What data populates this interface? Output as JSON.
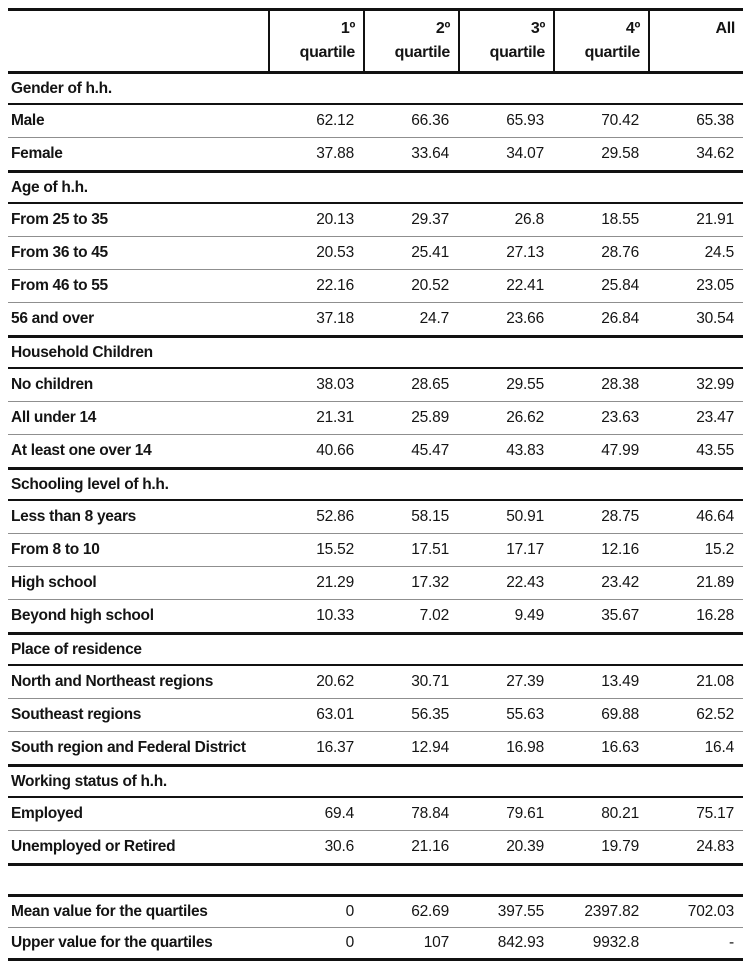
{
  "colors": {
    "background": "#ffffff",
    "text": "#141414",
    "border_strong": "#111111",
    "border_section_title": "#111111",
    "border_thin": "#8f8f8f"
  },
  "chart_data": {
    "type": "table",
    "columns": [
      {
        "line1": "1º",
        "line2": "quartile"
      },
      {
        "line1": "2º",
        "line2": "quartile"
      },
      {
        "line1": "3º",
        "line2": "quartile"
      },
      {
        "line1": "4º",
        "line2": "quartile"
      },
      {
        "line1": "All",
        "line2": ""
      }
    ],
    "sections": [
      {
        "title": "Gender of h.h.",
        "rows": [
          {
            "label": "Male",
            "values": [
              "62.12",
              "66.36",
              "65.93",
              "70.42",
              "65.38"
            ]
          },
          {
            "label": "Female",
            "values": [
              "37.88",
              "33.64",
              "34.07",
              "29.58",
              "34.62"
            ]
          }
        ]
      },
      {
        "title": "Age of h.h.",
        "rows": [
          {
            "label": "From 25 to 35",
            "values": [
              "20.13",
              "29.37",
              "26.8",
              "18.55",
              "21.91"
            ]
          },
          {
            "label": "From 36 to 45",
            "values": [
              "20.53",
              "25.41",
              "27.13",
              "28.76",
              "24.5"
            ]
          },
          {
            "label": "From 46 to 55",
            "values": [
              "22.16",
              "20.52",
              "22.41",
              "25.84",
              "23.05"
            ]
          },
          {
            "label": "56 and over",
            "values": [
              "37.18",
              "24.7",
              "23.66",
              "26.84",
              "30.54"
            ]
          }
        ]
      },
      {
        "title": "Household Children",
        "rows": [
          {
            "label": "No children",
            "values": [
              "38.03",
              "28.65",
              "29.55",
              "28.38",
              "32.99"
            ]
          },
          {
            "label": "All under 14",
            "values": [
              "21.31",
              "25.89",
              "26.62",
              "23.63",
              "23.47"
            ]
          },
          {
            "label": "At least one over 14",
            "values": [
              "40.66",
              "45.47",
              "43.83",
              "47.99",
              "43.55"
            ]
          }
        ]
      },
      {
        "title": "Schooling level of h.h.",
        "rows": [
          {
            "label": "Less than 8 years",
            "values": [
              "52.86",
              "58.15",
              "50.91",
              "28.75",
              "46.64"
            ]
          },
          {
            "label": "From 8 to 10",
            "values": [
              "15.52",
              "17.51",
              "17.17",
              "12.16",
              "15.2"
            ]
          },
          {
            "label": "High school",
            "values": [
              "21.29",
              "17.32",
              "22.43",
              "23.42",
              "21.89"
            ]
          },
          {
            "label": "Beyond high school",
            "values": [
              "10.33",
              "7.02",
              "9.49",
              "35.67",
              "16.28"
            ]
          }
        ]
      },
      {
        "title": "Place of residence",
        "rows": [
          {
            "label": "North and Northeast regions",
            "values": [
              "20.62",
              "30.71",
              "27.39",
              "13.49",
              "21.08"
            ]
          },
          {
            "label": "Southeast regions",
            "values": [
              "63.01",
              "56.35",
              "55.63",
              "69.88",
              "62.52"
            ]
          },
          {
            "label": "South region and Federal District",
            "values": [
              "16.37",
              "12.94",
              "16.98",
              "16.63",
              "16.4"
            ]
          }
        ]
      },
      {
        "title": "Working status of h.h.",
        "rows": [
          {
            "label": "Employed",
            "values": [
              "69.4",
              "78.84",
              "79.61",
              "80.21",
              "75.17"
            ]
          },
          {
            "label": "Unemployed or Retired",
            "values": [
              "30.6",
              "21.16",
              "20.39",
              "19.79",
              "24.83"
            ]
          }
        ]
      }
    ],
    "summary_rows": [
      {
        "label": "Mean value for the quartiles",
        "values": [
          "0",
          "62.69",
          "397.55",
          "2397.82",
          "702.03"
        ]
      },
      {
        "label": "Upper value for the quartiles",
        "values": [
          "0",
          "107",
          "842.93",
          "9932.8",
          "-"
        ]
      }
    ]
  }
}
